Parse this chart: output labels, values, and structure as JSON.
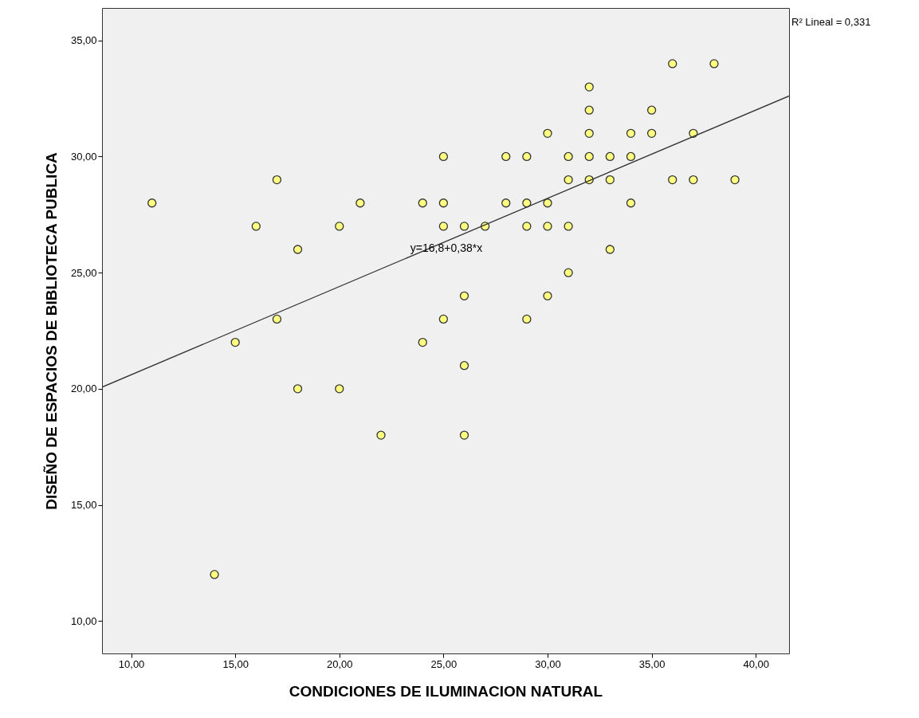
{
  "chart_data": {
    "type": "scatter",
    "xlabel": "CONDICIONES DE ILUMINACION NATURAL",
    "ylabel": "DISEÑO DE ESPACIOS DE BIBLIOTECA PUBLICA",
    "xlim": [
      8.6,
      41.6
    ],
    "ylim": [
      8.6,
      36.4
    ],
    "xticks": [
      {
        "value": 10,
        "label": "10,00"
      },
      {
        "value": 15,
        "label": "15,00"
      },
      {
        "value": 20,
        "label": "20,00"
      },
      {
        "value": 25,
        "label": "25,00"
      },
      {
        "value": 30,
        "label": "30,00"
      },
      {
        "value": 35,
        "label": "35,00"
      },
      {
        "value": 40,
        "label": "40,00"
      }
    ],
    "yticks": [
      {
        "value": 10,
        "label": "10,00"
      },
      {
        "value": 15,
        "label": "15,00"
      },
      {
        "value": 20,
        "label": "20,00"
      },
      {
        "value": 25,
        "label": "25,00"
      },
      {
        "value": 30,
        "label": "30,00"
      },
      {
        "value": 35,
        "label": "35,00"
      }
    ],
    "grid": false,
    "marker": "circle",
    "series": [
      {
        "color": "#ffff80",
        "x": [
          11,
          14,
          15,
          16,
          17,
          17,
          18,
          18,
          20,
          20,
          21,
          22,
          24,
          24,
          25,
          25,
          25,
          25,
          26,
          26,
          26,
          26,
          27,
          28,
          28,
          29,
          29,
          29,
          29,
          30,
          30,
          30,
          30,
          31,
          31,
          31,
          31,
          32,
          32,
          32,
          32,
          32,
          33,
          33,
          33,
          34,
          34,
          34,
          35,
          35,
          36,
          36,
          37,
          37,
          38,
          39
        ],
        "values": [
          28,
          12,
          22,
          27,
          29,
          23,
          26,
          20,
          27,
          20,
          28,
          18,
          28,
          22,
          30,
          28,
          27,
          23,
          27,
          24,
          21,
          18,
          27,
          30,
          28,
          30,
          28,
          27,
          23,
          31,
          28,
          27,
          24,
          30,
          29,
          27,
          25,
          33,
          32,
          31,
          30,
          29,
          30,
          29,
          26,
          31,
          30,
          28,
          32,
          31,
          34,
          29,
          31,
          29,
          34,
          29
        ]
      },
      {
        "type": "line",
        "marker": "none",
        "color": "#333333",
        "x": [
          8.6,
          41.6
        ],
        "values": [
          20.07,
          32.61
        ]
      }
    ],
    "annotations": [
      "y=16,8+0,38*x",
      "R² Lineal = 0,331"
    ]
  }
}
